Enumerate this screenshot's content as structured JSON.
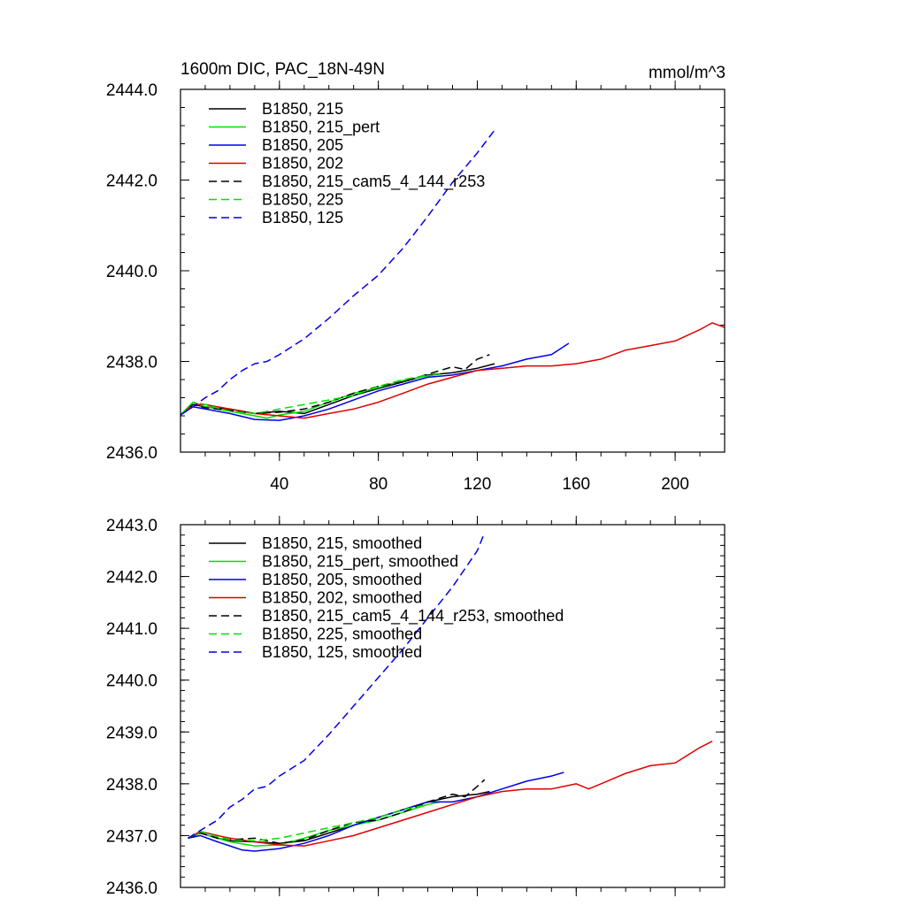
{
  "colors": {
    "black": "#000000",
    "green": "#00e000",
    "blue": "#0000e8",
    "red": "#e00000"
  },
  "chart_data": [
    {
      "type": "line",
      "title": "1600m DIC, PAC_18N-49N",
      "units": "mmol/m^3",
      "xlim": [
        0,
        220
      ],
      "ylim": [
        2436.0,
        2444.0
      ],
      "xticks": [
        40,
        80,
        120,
        160,
        200
      ],
      "xtick_labels": [
        "40",
        "80",
        "120",
        "160",
        "200"
      ],
      "yticks": [
        2436.0,
        2438.0,
        2440.0,
        2442.0,
        2444.0
      ],
      "ytick_labels": [
        "2436.0",
        "2438.0",
        "2440.0",
        "2442.0",
        "2444.0"
      ],
      "series": [
        {
          "name": "B1850, 215",
          "color": "black",
          "dash": false,
          "x": [
            0,
            5,
            10,
            20,
            30,
            40,
            50,
            60,
            70,
            80,
            90,
            100,
            110,
            120,
            127
          ],
          "y": [
            2436.82,
            2437.05,
            2437.0,
            2436.95,
            2436.85,
            2436.9,
            2436.85,
            2437.05,
            2437.25,
            2437.4,
            2437.55,
            2437.7,
            2437.75,
            2437.85,
            2437.95
          ]
        },
        {
          "name": "B1850, 215_pert",
          "color": "green",
          "dash": false,
          "x": [
            0,
            5,
            10,
            20,
            30,
            35,
            40,
            50,
            60,
            70,
            80,
            90,
            100,
            105
          ],
          "y": [
            2436.82,
            2437.1,
            2437.0,
            2436.9,
            2436.8,
            2436.75,
            2436.82,
            2436.9,
            2437.1,
            2437.3,
            2437.42,
            2437.58,
            2437.68,
            2437.72
          ]
        },
        {
          "name": "B1850, 205",
          "color": "blue",
          "dash": false,
          "x": [
            0,
            5,
            10,
            20,
            30,
            40,
            50,
            60,
            70,
            80,
            90,
            100,
            110,
            120,
            130,
            140,
            150,
            157
          ],
          "y": [
            2436.82,
            2437.0,
            2436.95,
            2436.85,
            2436.72,
            2436.7,
            2436.8,
            2436.95,
            2437.15,
            2437.35,
            2437.5,
            2437.65,
            2437.7,
            2437.8,
            2437.9,
            2438.05,
            2438.15,
            2438.4
          ]
        },
        {
          "name": "B1850, 202",
          "color": "red",
          "dash": false,
          "x": [
            0,
            5,
            10,
            20,
            30,
            40,
            50,
            60,
            70,
            80,
            90,
            100,
            110,
            120,
            130,
            140,
            150,
            160,
            170,
            180,
            190,
            200,
            210,
            215,
            220
          ],
          "y": [
            2436.82,
            2437.05,
            2437.05,
            2436.95,
            2436.85,
            2436.8,
            2436.75,
            2436.85,
            2436.95,
            2437.1,
            2437.3,
            2437.5,
            2437.65,
            2437.8,
            2437.85,
            2437.9,
            2437.9,
            2437.95,
            2438.05,
            2438.25,
            2438.35,
            2438.45,
            2438.7,
            2438.85,
            2438.75
          ]
        },
        {
          "name": "B1850, 215_cam5_4_144_r253",
          "color": "black",
          "dash": true,
          "x": [
            0,
            5,
            10,
            20,
            30,
            40,
            50,
            60,
            70,
            80,
            90,
            100,
            110,
            115,
            120,
            125
          ],
          "y": [
            2436.82,
            2437.05,
            2436.98,
            2436.92,
            2436.85,
            2436.88,
            2436.95,
            2437.1,
            2437.3,
            2437.45,
            2437.55,
            2437.72,
            2437.88,
            2437.82,
            2438.05,
            2438.15
          ]
        },
        {
          "name": "B1850, 225",
          "color": "green",
          "dash": true,
          "x": [
            0,
            5,
            10,
            20,
            30,
            40,
            50,
            60,
            70,
            80,
            90,
            100
          ],
          "y": [
            2436.82,
            2437.1,
            2437.05,
            2436.9,
            2436.85,
            2436.95,
            2437.05,
            2437.15,
            2437.25,
            2437.45,
            2437.6,
            2437.7
          ]
        },
        {
          "name": "B1850, 125",
          "color": "blue",
          "dash": true,
          "x": [
            0,
            5,
            10,
            15,
            20,
            25,
            30,
            35,
            40,
            50,
            60,
            70,
            80,
            90,
            100,
            110,
            120,
            127
          ],
          "y": [
            2436.82,
            2437.0,
            2437.2,
            2437.35,
            2437.6,
            2437.8,
            2437.95,
            2438.0,
            2438.15,
            2438.5,
            2438.95,
            2439.45,
            2439.9,
            2440.5,
            2441.2,
            2441.95,
            2442.6,
            2443.1
          ]
        }
      ]
    },
    {
      "type": "line",
      "title": "",
      "xlim": [
        0,
        220
      ],
      "ylim": [
        2436.0,
        2443.0
      ],
      "xticks": [
        40,
        80,
        120,
        160,
        200
      ],
      "xtick_labels": [],
      "yticks": [
        2436.0,
        2437.0,
        2438.0,
        2439.0,
        2440.0,
        2441.0,
        2442.0,
        2443.0
      ],
      "ytick_labels": [
        "2436.0",
        "2437.0",
        "2438.0",
        "2439.0",
        "2440.0",
        "2441.0",
        "2442.0",
        "2443.0"
      ],
      "series": [
        {
          "name": "B1850, 215, smoothed",
          "color": "black",
          "dash": false,
          "x": [
            3,
            8,
            15,
            20,
            30,
            40,
            50,
            60,
            70,
            80,
            90,
            100,
            110,
            120,
            125
          ],
          "y": [
            2436.95,
            2437.05,
            2436.95,
            2436.9,
            2436.88,
            2436.85,
            2436.9,
            2437.05,
            2437.2,
            2437.35,
            2437.5,
            2437.65,
            2437.75,
            2437.8,
            2437.85
          ]
        },
        {
          "name": "B1850, 215_pert, smoothed",
          "color": "green",
          "dash": false,
          "x": [
            3,
            8,
            15,
            20,
            30,
            40,
            50,
            60,
            70,
            80,
            90,
            100,
            105
          ],
          "y": [
            2436.95,
            2437.05,
            2436.95,
            2436.88,
            2436.8,
            2436.82,
            2436.95,
            2437.1,
            2437.2,
            2437.3,
            2437.45,
            2437.6,
            2437.65
          ]
        },
        {
          "name": "B1850, 205, smoothed",
          "color": "blue",
          "dash": false,
          "x": [
            3,
            8,
            15,
            20,
            25,
            30,
            40,
            50,
            60,
            70,
            80,
            90,
            100,
            110,
            120,
            130,
            140,
            150,
            155
          ],
          "y": [
            2436.95,
            2437.0,
            2436.88,
            2436.8,
            2436.72,
            2436.7,
            2436.75,
            2436.85,
            2437.0,
            2437.2,
            2437.35,
            2437.5,
            2437.65,
            2437.65,
            2437.75,
            2437.9,
            2438.05,
            2438.15,
            2438.22
          ]
        },
        {
          "name": "B1850, 202, smoothed",
          "color": "red",
          "dash": false,
          "x": [
            3,
            8,
            15,
            20,
            30,
            40,
            50,
            60,
            70,
            80,
            90,
            100,
            110,
            120,
            130,
            140,
            150,
            160,
            165,
            170,
            180,
            190,
            200,
            210,
            215
          ],
          "y": [
            2436.95,
            2437.08,
            2437.0,
            2436.95,
            2436.88,
            2436.82,
            2436.8,
            2436.9,
            2437.0,
            2437.15,
            2437.3,
            2437.45,
            2437.6,
            2437.75,
            2437.85,
            2437.9,
            2437.9,
            2438.0,
            2437.9,
            2438.0,
            2438.2,
            2438.35,
            2438.4,
            2438.7,
            2438.82
          ]
        },
        {
          "name": "B1850, 215_cam5_4_144_r253, smoothed",
          "color": "black",
          "dash": true,
          "x": [
            3,
            8,
            15,
            20,
            30,
            40,
            50,
            60,
            70,
            80,
            90,
            100,
            110,
            115,
            120,
            123
          ],
          "y": [
            2436.95,
            2437.05,
            2436.95,
            2436.92,
            2436.95,
            2436.85,
            2436.92,
            2437.1,
            2437.25,
            2437.3,
            2437.45,
            2437.65,
            2437.8,
            2437.75,
            2437.95,
            2438.08
          ]
        },
        {
          "name": "B1850, 225, smoothed",
          "color": "green",
          "dash": true,
          "x": [
            3,
            8,
            15,
            20,
            30,
            40,
            50,
            60,
            70,
            80,
            90,
            100
          ],
          "y": [
            2436.95,
            2437.08,
            2436.98,
            2436.92,
            2436.9,
            2436.95,
            2437.05,
            2437.15,
            2437.25,
            2437.35,
            2437.5,
            2437.6
          ]
        },
        {
          "name": "B1850, 125, smoothed",
          "color": "blue",
          "dash": true,
          "x": [
            3,
            8,
            15,
            20,
            25,
            30,
            35,
            40,
            50,
            60,
            70,
            80,
            90,
            100,
            110,
            120,
            123
          ],
          "y": [
            2436.95,
            2437.1,
            2437.3,
            2437.55,
            2437.7,
            2437.9,
            2437.95,
            2438.15,
            2438.45,
            2438.95,
            2439.5,
            2440.05,
            2440.6,
            2441.2,
            2441.8,
            2442.5,
            2442.85
          ]
        }
      ]
    }
  ]
}
